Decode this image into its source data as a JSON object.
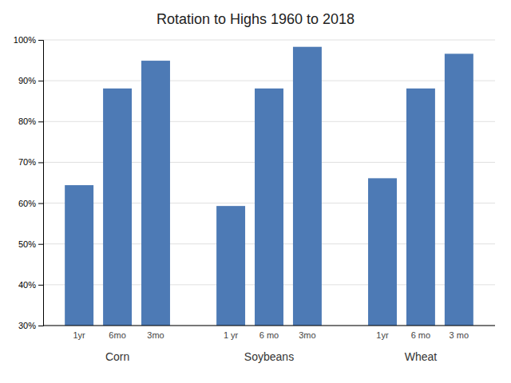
{
  "chart_data": {
    "type": "bar",
    "title": "Rotation to Highs 1960 to 2018",
    "color": "#4d7ab5",
    "groups": [
      {
        "label": "Corn",
        "categories": [
          "1yr",
          "6mo",
          "3mo"
        ],
        "values": [
          0.644,
          0.881,
          0.949
        ]
      },
      {
        "label": "Soybeans",
        "categories": [
          "1 yr",
          "6 mo",
          "3mo"
        ],
        "values": [
          0.593,
          0.881,
          0.983
        ]
      },
      {
        "label": "Wheat",
        "categories": [
          "1yr",
          "6 mo",
          "3 mo"
        ],
        "values": [
          0.661,
          0.881,
          0.966
        ]
      }
    ],
    "ylim": [
      0.3,
      1.0
    ],
    "yticks": [
      {
        "value": 0.3,
        "label": "30%"
      },
      {
        "value": 0.4,
        "label": "40%"
      },
      {
        "value": 0.5,
        "label": "50%"
      },
      {
        "value": 0.6,
        "label": "60%"
      },
      {
        "value": 0.7,
        "label": "70%"
      },
      {
        "value": 0.8,
        "label": "80%"
      },
      {
        "value": 0.9,
        "label": "90%"
      },
      {
        "value": 1.0,
        "label": "100%"
      }
    ],
    "grid": true
  }
}
